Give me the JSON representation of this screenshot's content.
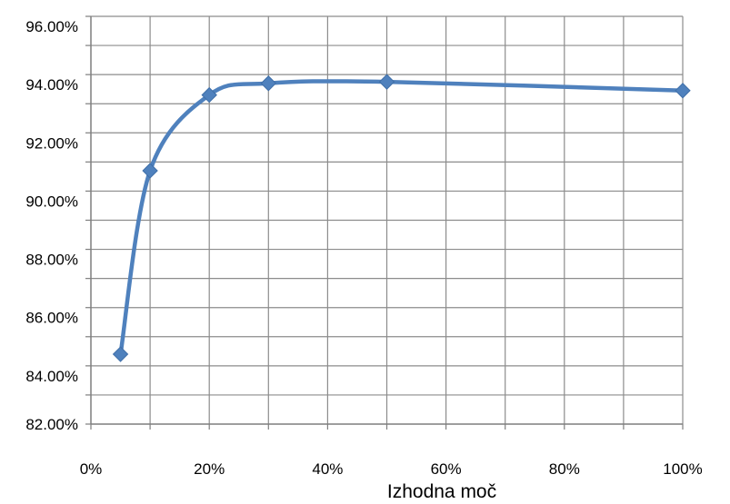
{
  "chart_data": {
    "type": "line",
    "title": "",
    "xlabel": "Izhodna moč",
    "ylabel": "",
    "x_ticks": [
      "0%",
      "20%",
      "40%",
      "60%",
      "80%",
      "100%"
    ],
    "y_ticks": [
      "82.00%",
      "84.00%",
      "86.00%",
      "88.00%",
      "90.00%",
      "92.00%",
      "94.00%",
      "96.00%"
    ],
    "xlim": [
      0,
      100
    ],
    "ylim": [
      82,
      96
    ],
    "grid": true,
    "legend": "none",
    "series": [
      {
        "color": "#4f81bd",
        "marker": "diamond",
        "smooth": true,
        "x": [
          5,
          10,
          20,
          30,
          50,
          100
        ],
        "y": [
          84.4,
          90.7,
          93.3,
          93.7,
          93.75,
          93.45
        ]
      }
    ]
  }
}
